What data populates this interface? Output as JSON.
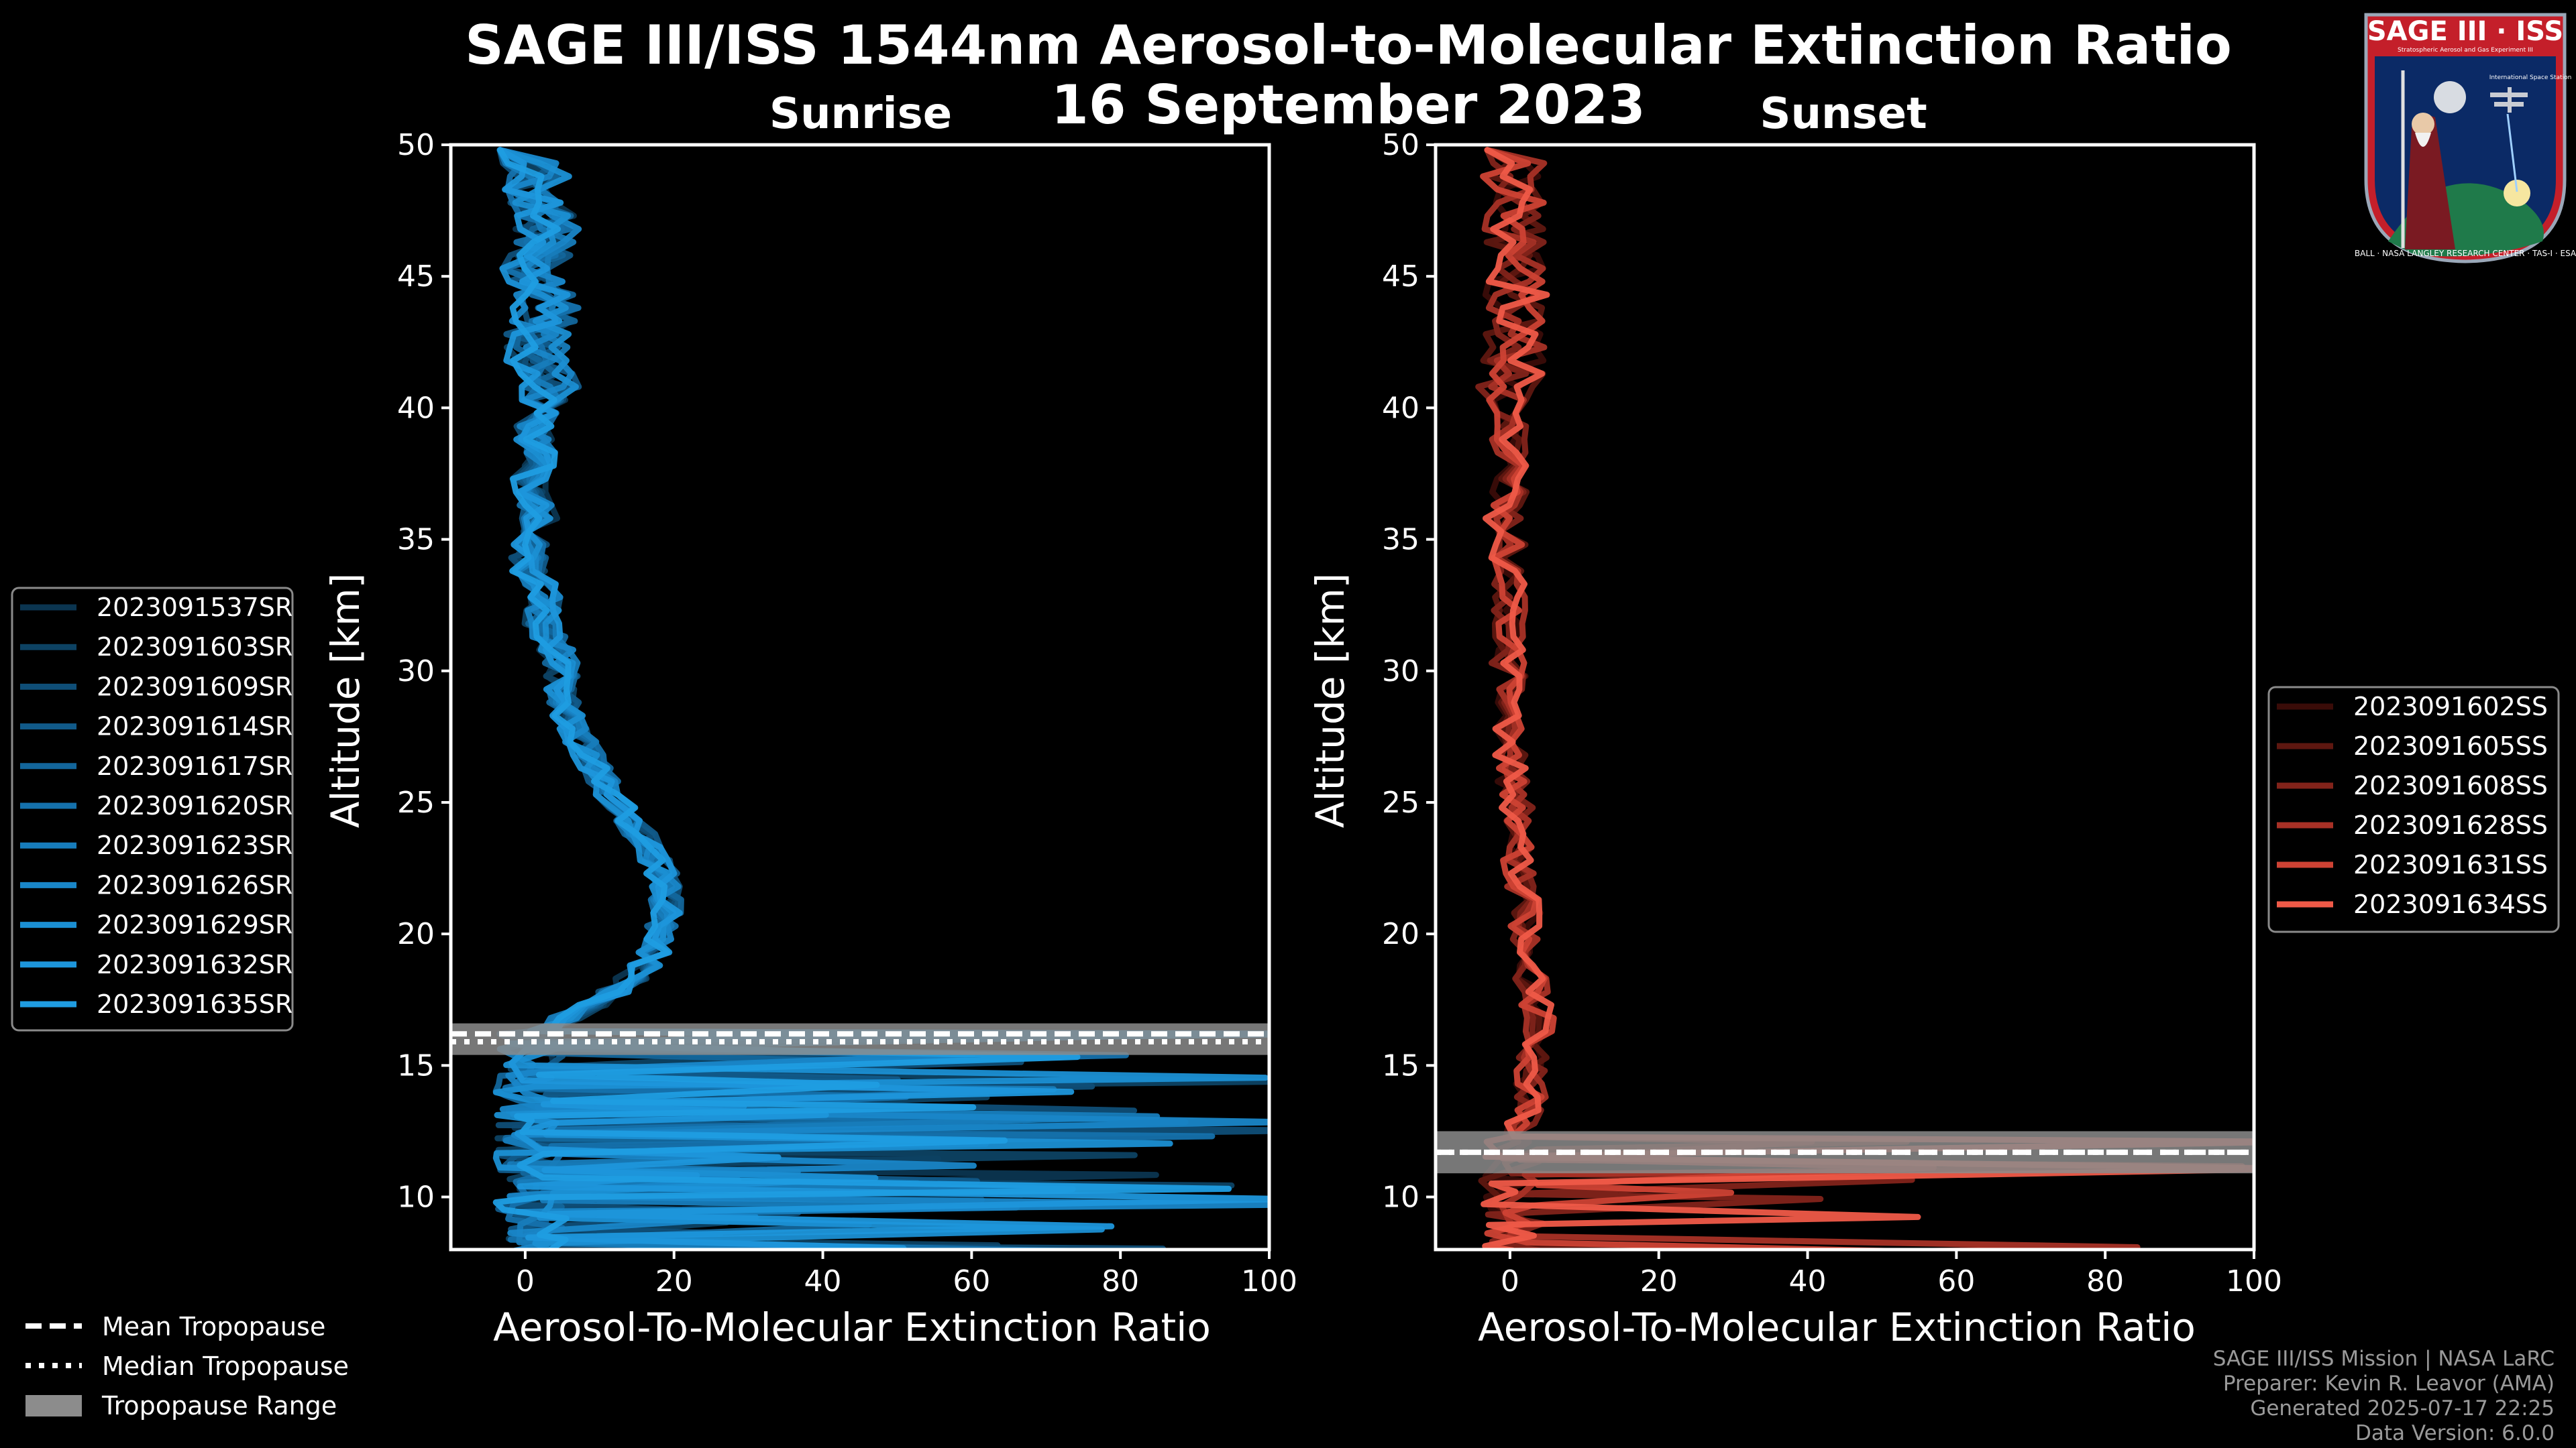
{
  "header": {
    "title_line1": "SAGE III/ISS 1544nm Aerosol-to-Molecular Extinction Ratio",
    "title_line2": "16 September 2023"
  },
  "logo": {
    "title": "SAGE III · ISS",
    "subtitle": "Stratospheric Aerosol and Gas Experiment III",
    "station": "International Space Station",
    "ring": "BALL · NASA LANGLEY RESEARCH CENTER · TAS-I · ESA"
  },
  "chart_data": [
    {
      "type": "line",
      "title": "Sunrise",
      "xlabel": "Aerosol-To-Molecular Extinction Ratio",
      "ylabel": "Altitude [km]",
      "xlim": [
        -10,
        100
      ],
      "ylim": [
        8,
        50
      ],
      "xticks": [
        "0",
        "20",
        "40",
        "60",
        "80",
        "100"
      ],
      "yticks": [
        "10",
        "15",
        "20",
        "25",
        "30",
        "35",
        "40",
        "45",
        "50"
      ],
      "tropopause": {
        "mean": 16.2,
        "median": 15.9,
        "range": [
          15.4,
          16.6
        ]
      },
      "series": [
        {
          "name": "2023091537SR",
          "color": "#0b3550"
        },
        {
          "name": "2023091603SR",
          "color": "#0d4263"
        },
        {
          "name": "2023091609SR",
          "color": "#0f4e77"
        },
        {
          "name": "2023091614SR",
          "color": "#115a89"
        },
        {
          "name": "2023091617SR",
          "color": "#13669b"
        },
        {
          "name": "2023091620SR",
          "color": "#1571ac"
        },
        {
          "name": "2023091623SR",
          "color": "#177cbb"
        },
        {
          "name": "2023091626SR",
          "color": "#1986c8"
        },
        {
          "name": "2023091629SR",
          "color": "#1b8fd3"
        },
        {
          "name": "2023091632SR",
          "color": "#1d96db"
        },
        {
          "name": "2023091635SR",
          "color": "#1f9de2"
        }
      ],
      "mean_profile": [
        [
          49,
          2
        ],
        [
          48,
          1
        ],
        [
          47,
          3
        ],
        [
          46,
          2
        ],
        [
          45,
          1
        ],
        [
          44,
          3
        ],
        [
          43,
          2
        ],
        [
          42,
          1
        ],
        [
          41,
          3
        ],
        [
          40,
          2
        ],
        [
          39,
          1
        ],
        [
          38,
          2
        ],
        [
          37,
          0
        ],
        [
          36,
          2
        ],
        [
          35,
          1
        ],
        [
          34,
          0
        ],
        [
          33,
          3
        ],
        [
          32,
          2
        ],
        [
          31,
          4
        ],
        [
          30,
          5
        ],
        [
          29,
          5
        ],
        [
          28,
          6
        ],
        [
          27,
          8
        ],
        [
          26,
          10
        ],
        [
          25,
          12
        ],
        [
          24,
          15
        ],
        [
          23,
          17
        ],
        [
          22,
          19
        ],
        [
          21,
          19
        ],
        [
          20,
          18
        ],
        [
          19,
          17
        ],
        [
          18,
          13
        ],
        [
          17,
          7
        ],
        [
          16.5,
          3
        ],
        [
          16,
          1
        ],
        [
          15,
          1
        ]
      ]
    },
    {
      "type": "line",
      "title": "Sunset",
      "xlabel": "Aerosol-To-Molecular Extinction Ratio",
      "ylabel": "Altitude [km]",
      "xlim": [
        -10,
        100
      ],
      "ylim": [
        8,
        50
      ],
      "xticks": [
        "0",
        "20",
        "40",
        "60",
        "80",
        "100"
      ],
      "yticks": [
        "10",
        "15",
        "20",
        "25",
        "30",
        "35",
        "40",
        "45",
        "50"
      ],
      "tropopause": {
        "mean": 11.7,
        "median": 11.7,
        "range": [
          10.9,
          12.5
        ]
      },
      "series": [
        {
          "name": "2023091602SS",
          "color": "#3a0c08"
        },
        {
          "name": "2023091605SS",
          "color": "#5e1710"
        },
        {
          "name": "2023091608SS",
          "color": "#82231a"
        },
        {
          "name": "2023091628SS",
          "color": "#a83126"
        },
        {
          "name": "2023091631SS",
          "color": "#cd4234"
        },
        {
          "name": "2023091634SS",
          "color": "#ef5a48"
        }
      ],
      "mean_profile": [
        [
          49,
          0
        ],
        [
          48,
          1
        ],
        [
          47,
          0
        ],
        [
          46,
          1
        ],
        [
          45,
          0
        ],
        [
          44,
          1
        ],
        [
          43,
          0
        ],
        [
          42,
          1
        ],
        [
          41,
          0
        ],
        [
          40,
          0
        ],
        [
          39,
          0
        ],
        [
          38,
          0
        ],
        [
          37,
          0
        ],
        [
          36,
          -1
        ],
        [
          35,
          0
        ],
        [
          34,
          -1
        ],
        [
          33,
          0
        ],
        [
          32,
          0
        ],
        [
          31,
          0
        ],
        [
          30,
          0
        ],
        [
          29,
          0
        ],
        [
          28,
          0
        ],
        [
          27,
          0
        ],
        [
          26,
          0
        ],
        [
          25,
          1
        ],
        [
          24,
          1
        ],
        [
          23,
          1
        ],
        [
          22,
          1
        ],
        [
          21,
          2
        ],
        [
          20,
          2
        ],
        [
          19,
          2
        ],
        [
          18,
          3
        ],
        [
          17,
          4
        ],
        [
          16,
          4
        ],
        [
          15,
          3
        ],
        [
          14,
          3
        ],
        [
          13,
          2
        ],
        [
          12,
          1
        ]
      ]
    }
  ],
  "legends": {
    "tropopause": {
      "mean_label": "Mean Tropopause",
      "median_label": "Median Tropopause",
      "range_label": "Tropopause Range"
    }
  },
  "credits": {
    "line1": "SAGE III/ISS Mission | NASA LaRC",
    "line2": "Preparer: Kevin R. Leavor (AMA)",
    "line3": "Generated 2025-07-17 22:25",
    "line4": "Data Version: 6.0.0"
  },
  "colors": {
    "tropopause_band": "#8c8c8c",
    "background": "#000000",
    "frame": "#ffffff"
  }
}
